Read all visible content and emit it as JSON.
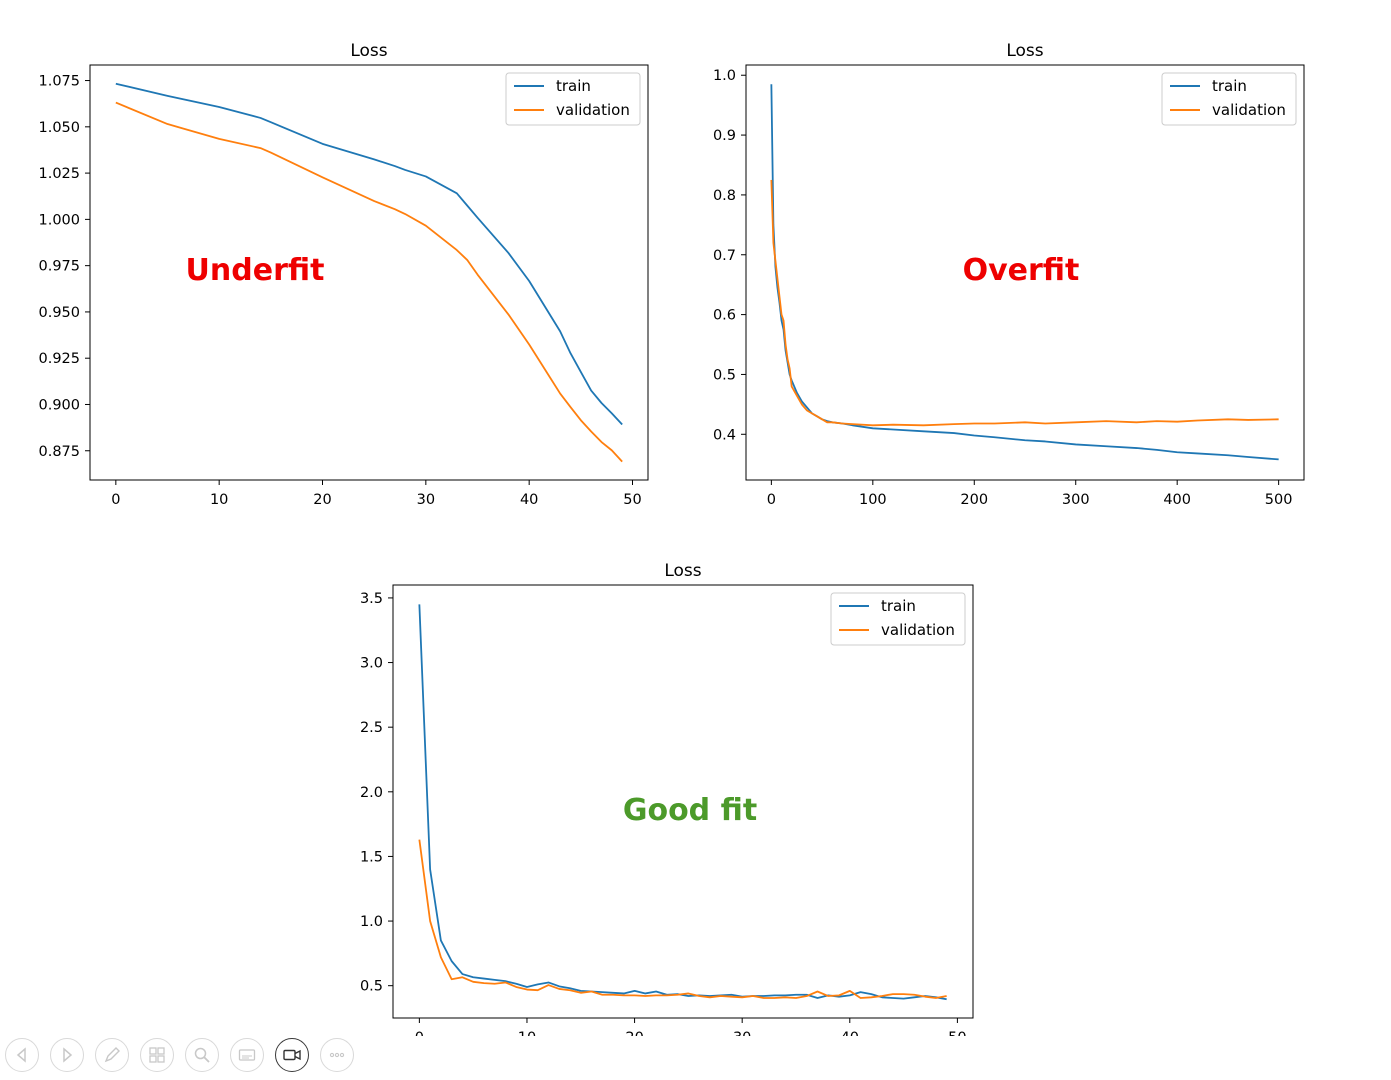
{
  "chart_data": [
    {
      "type": "line",
      "title": "Loss",
      "annotation": {
        "text": "Underfit",
        "color": "#ee0000"
      },
      "xlim": [
        -2.5,
        51.5
      ],
      "ylim": [
        0.8592,
        1.0834
      ],
      "xticks": [
        0,
        10,
        20,
        30,
        40,
        50
      ],
      "yticks": [
        0.875,
        0.9,
        0.925,
        0.95,
        0.975,
        1.0,
        1.025,
        1.05,
        1.075
      ],
      "ytick_labels": [
        "0.875",
        "0.900",
        "0.925",
        "0.950",
        "0.975",
        "1.000",
        "1.025",
        "1.050",
        "1.075"
      ],
      "legend": {
        "loc": "upper right"
      },
      "x": [
        0,
        5,
        10,
        14,
        15,
        20,
        25,
        27,
        28,
        30,
        33,
        34,
        35,
        38,
        40,
        43,
        44,
        45,
        46,
        47,
        48,
        49
      ],
      "series": [
        {
          "name": "train",
          "color": "#1f77b4",
          "values": [
            1.0733,
            1.0667,
            1.0607,
            1.0548,
            1.0525,
            1.0408,
            1.0324,
            1.0288,
            1.0267,
            1.0232,
            1.0141,
            1.0075,
            1.0009,
            0.9818,
            0.9667,
            0.9395,
            0.9277,
            0.9176,
            0.9075,
            0.9008,
            0.8952,
            0.8892
          ]
        },
        {
          "name": "validation",
          "color": "#ff7f0e",
          "values": [
            1.0631,
            1.0515,
            1.0435,
            1.0385,
            1.0361,
            1.0227,
            1.0099,
            1.0055,
            1.0029,
            0.9966,
            0.9834,
            0.9781,
            0.9702,
            0.9486,
            0.9324,
            0.9059,
            0.8986,
            0.8915,
            0.8854,
            0.8797,
            0.8752,
            0.8691
          ]
        }
      ]
    },
    {
      "type": "line",
      "title": "Loss",
      "annotation": {
        "text": "Overfit",
        "color": "#ee0000"
      },
      "xlim": [
        -25,
        525
      ],
      "ylim": [
        0.3236,
        1.0171
      ],
      "xticks": [
        0,
        100,
        200,
        300,
        400,
        500
      ],
      "yticks": [
        0.4,
        0.5,
        0.6,
        0.7,
        0.8,
        0.9,
        1.0
      ],
      "ytick_labels": [
        "0.4",
        "0.5",
        "0.6",
        "0.7",
        "0.8",
        "0.9",
        "1.0"
      ],
      "legend": {
        "loc": "upper right"
      },
      "x": [
        0,
        2,
        4,
        6,
        8,
        10,
        12,
        14,
        16,
        18,
        20,
        25,
        30,
        35,
        40,
        45,
        50,
        55,
        60,
        70,
        80,
        100,
        120,
        150,
        180,
        200,
        220,
        250,
        270,
        300,
        330,
        360,
        380,
        400,
        420,
        450,
        470,
        500
      ],
      "series": [
        {
          "name": "train",
          "color": "#1f77b4",
          "values": [
            0.985,
            0.75,
            0.68,
            0.645,
            0.62,
            0.59,
            0.575,
            0.54,
            0.52,
            0.5,
            0.49,
            0.47,
            0.455,
            0.445,
            0.435,
            0.43,
            0.425,
            0.422,
            0.42,
            0.418,
            0.415,
            0.41,
            0.408,
            0.405,
            0.402,
            0.398,
            0.395,
            0.39,
            0.388,
            0.383,
            0.38,
            0.377,
            0.374,
            0.37,
            0.368,
            0.365,
            0.362,
            0.358
          ]
        },
        {
          "name": "validation",
          "color": "#ff7f0e",
          "values": [
            0.825,
            0.72,
            0.69,
            0.66,
            0.63,
            0.6,
            0.59,
            0.55,
            0.525,
            0.51,
            0.48,
            0.465,
            0.45,
            0.44,
            0.435,
            0.43,
            0.425,
            0.42,
            0.42,
            0.418,
            0.417,
            0.415,
            0.416,
            0.415,
            0.417,
            0.418,
            0.418,
            0.42,
            0.418,
            0.42,
            0.422,
            0.42,
            0.422,
            0.421,
            0.423,
            0.425,
            0.424,
            0.425
          ]
        }
      ]
    },
    {
      "type": "line",
      "title": "Loss",
      "annotation": {
        "text": "Good fit",
        "color": "#4c9a2a"
      },
      "xlim": [
        -2.45,
        51.45
      ],
      "ylim": [
        0.25,
        3.6
      ],
      "xticks": [
        0,
        10,
        20,
        30,
        40,
        50
      ],
      "yticks": [
        0.5,
        1.0,
        1.5,
        2.0,
        2.5,
        3.0,
        3.5
      ],
      "ytick_labels": [
        "0.5",
        "1.0",
        "1.5",
        "2.0",
        "2.5",
        "3.0",
        "3.5"
      ],
      "legend": {
        "loc": "upper right"
      },
      "x": [
        0,
        1,
        2,
        3,
        4,
        5,
        6,
        7,
        8,
        9,
        10,
        11,
        12,
        13,
        14,
        15,
        16,
        17,
        18,
        19,
        20,
        21,
        22,
        23,
        24,
        25,
        26,
        27,
        28,
        29,
        30,
        31,
        32,
        33,
        34,
        35,
        36,
        37,
        38,
        39,
        40,
        41,
        42,
        43,
        44,
        45,
        46,
        47,
        48,
        49
      ],
      "series": [
        {
          "name": "train",
          "color": "#1f77b4",
          "values": [
            3.45,
            1.4,
            0.85,
            0.69,
            0.59,
            0.565,
            0.555,
            0.545,
            0.535,
            0.515,
            0.49,
            0.51,
            0.525,
            0.495,
            0.48,
            0.46,
            0.455,
            0.45,
            0.445,
            0.44,
            0.46,
            0.44,
            0.455,
            0.43,
            0.435,
            0.42,
            0.425,
            0.42,
            0.425,
            0.43,
            0.415,
            0.42,
            0.42,
            0.425,
            0.425,
            0.43,
            0.43,
            0.405,
            0.425,
            0.415,
            0.425,
            0.45,
            0.435,
            0.41,
            0.405,
            0.4,
            0.41,
            0.42,
            0.41,
            0.395
          ]
        },
        {
          "name": "validation",
          "color": "#ff7f0e",
          "values": [
            1.63,
            1.0,
            0.72,
            0.55,
            0.565,
            0.53,
            0.52,
            0.515,
            0.525,
            0.49,
            0.47,
            0.465,
            0.505,
            0.475,
            0.465,
            0.445,
            0.455,
            0.43,
            0.43,
            0.425,
            0.425,
            0.42,
            0.425,
            0.425,
            0.43,
            0.44,
            0.42,
            0.41,
            0.42,
            0.415,
            0.41,
            0.42,
            0.405,
            0.405,
            0.41,
            0.405,
            0.42,
            0.455,
            0.42,
            0.425,
            0.46,
            0.405,
            0.41,
            0.42,
            0.435,
            0.435,
            0.43,
            0.415,
            0.405,
            0.42
          ]
        }
      ]
    }
  ],
  "toolbar": {
    "buttons": [
      {
        "name": "previous-icon"
      },
      {
        "name": "next-icon"
      },
      {
        "name": "pen-icon"
      },
      {
        "name": "slides-grid-icon"
      },
      {
        "name": "zoom-icon"
      },
      {
        "name": "subtitles-icon"
      },
      {
        "name": "camera-icon",
        "active": true
      },
      {
        "name": "more-options-icon"
      }
    ]
  }
}
